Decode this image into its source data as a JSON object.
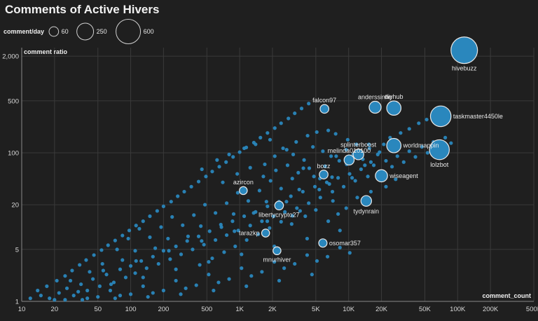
{
  "chart_data": {
    "type": "scatter",
    "title": "Comments of Active Hivers",
    "xlabel": "comment_count",
    "ylabel": "comment ratio",
    "x_scale": "log",
    "y_scale": "log",
    "xlim": [
      10,
      500000
    ],
    "ylim": [
      1,
      2600
    ],
    "x_ticks": [
      10,
      20,
      50,
      100,
      200,
      500,
      1000,
      2000,
      5000,
      10000,
      20000,
      50000,
      100000,
      200000,
      500000
    ],
    "x_tick_labels": [
      "10",
      "20",
      "50",
      "100",
      "200",
      "500",
      "1K",
      "2K",
      "5K",
      "10K",
      "20K",
      "50K",
      "100K",
      "200K",
      "500K"
    ],
    "y_ticks": [
      1,
      5,
      20,
      100,
      500,
      2000
    ],
    "y_tick_labels": [
      "1",
      "5",
      "20",
      "100",
      "500",
      "2,000"
    ],
    "grid": true,
    "size_legend": {
      "title": "comment/day",
      "entries": [
        {
          "label": "60",
          "value": 60
        },
        {
          "label": "250",
          "value": 250
        },
        {
          "label": "600",
          "value": 600
        }
      ]
    },
    "colors": {
      "point": "#2a87bd",
      "background": "#1f1f1f",
      "grid": "#3a3a3a"
    },
    "labeled_points": [
      {
        "name": "hivebuzz",
        "x": 115000,
        "y": 2400,
        "size": 640,
        "label_pos": "below"
      },
      {
        "name": "taskmaster4450le",
        "x": 70000,
        "y": 310,
        "size": 360,
        "label_pos": "right"
      },
      {
        "name": "lolzbot",
        "x": 68000,
        "y": 110,
        "size": 330,
        "label_pos": "below"
      },
      {
        "name": "worldmappin",
        "x": 26000,
        "y": 125,
        "size": 150,
        "label_pos": "right"
      },
      {
        "name": "anderssinho",
        "x": 17500,
        "y": 410,
        "size": 95,
        "label_pos": "above"
      },
      {
        "name": "diyhub",
        "x": 26000,
        "y": 400,
        "size": 150,
        "label_pos": "above"
      },
      {
        "name": "falcon97",
        "x": 6000,
        "y": 390,
        "size": 40,
        "label_pos": "above"
      },
      {
        "name": "splinterboost",
        "x": 12300,
        "y": 95,
        "size": 70,
        "label_pos": "above"
      },
      {
        "name": "melinda010100",
        "x": 10100,
        "y": 80,
        "size": 60,
        "label_pos": "above"
      },
      {
        "name": "bozz",
        "x": 5900,
        "y": 51,
        "size": 40,
        "label_pos": "above"
      },
      {
        "name": "wiseagent",
        "x": 20000,
        "y": 49,
        "size": 100,
        "label_pos": "right"
      },
      {
        "name": "azircon",
        "x": 1080,
        "y": 31,
        "size": 30,
        "label_pos": "above"
      },
      {
        "name": "tydynrain",
        "x": 14500,
        "y": 22.5,
        "size": 70,
        "label_pos": "below"
      },
      {
        "name": "libertycrypto27",
        "x": 2300,
        "y": 19.5,
        "size": 40,
        "label_pos": "below"
      },
      {
        "name": "tarazkp",
        "x": 1730,
        "y": 8.3,
        "size": 30,
        "label_pos": "left"
      },
      {
        "name": "osomar357",
        "x": 5800,
        "y": 6.1,
        "size": 35,
        "label_pos": "right"
      },
      {
        "name": "mnurhiver",
        "x": 2200,
        "y": 4.8,
        "size": 30,
        "label_pos": "below"
      }
    ],
    "cloud_points_note": "",
    "cloud_points": [
      [
        12,
        1.1
      ],
      [
        15,
        1.2
      ],
      [
        18,
        1.1
      ],
      [
        22,
        1.3
      ],
      [
        26,
        1.5
      ],
      [
        30,
        1.2
      ],
      [
        35,
        1.7
      ],
      [
        40,
        1.4
      ],
      [
        45,
        2.0
      ],
      [
        52,
        1.6
      ],
      [
        60,
        2.3
      ],
      [
        70,
        1.8
      ],
      [
        80,
        2.7
      ],
      [
        90,
        2.1
      ],
      [
        100,
        3.0
      ],
      [
        110,
        2.4
      ],
      [
        125,
        3.5
      ],
      [
        140,
        2.8
      ],
      [
        160,
        4.0
      ],
      [
        180,
        3.2
      ],
      [
        200,
        4.8
      ],
      [
        230,
        3.7
      ],
      [
        260,
        5.5
      ],
      [
        290,
        4.3
      ],
      [
        330,
        6.5
      ],
      [
        370,
        5.0
      ],
      [
        420,
        7.5
      ],
      [
        470,
        5.8
      ],
      [
        530,
        8.8
      ],
      [
        600,
        6.7
      ],
      [
        680,
        10
      ],
      [
        760,
        7.8
      ],
      [
        860,
        12
      ],
      [
        970,
        9
      ],
      [
        1100,
        14
      ],
      [
        1250,
        10.5
      ],
      [
        1400,
        16
      ],
      [
        1600,
        12
      ],
      [
        1800,
        19
      ],
      [
        2050,
        14
      ],
      [
        2300,
        22
      ],
      [
        2600,
        16
      ],
      [
        2950,
        26
      ],
      [
        3350,
        18
      ],
      [
        3800,
        30
      ],
      [
        4300,
        21
      ],
      [
        4900,
        35
      ],
      [
        5500,
        25
      ],
      [
        6300,
        40
      ],
      [
        7100,
        30
      ],
      [
        8000,
        46
      ],
      [
        9000,
        35
      ],
      [
        10200,
        52
      ],
      [
        11500,
        42
      ],
      [
        13000,
        60
      ],
      [
        15000,
        48
      ],
      [
        17000,
        68
      ],
      [
        19000,
        56
      ],
      [
        22000,
        78
      ],
      [
        25000,
        65
      ],
      [
        28000,
        90
      ],
      [
        32000,
        75
      ],
      [
        36000,
        105
      ],
      [
        41000,
        88
      ],
      [
        47000,
        120
      ],
      [
        53000,
        100
      ],
      [
        60000,
        140
      ],
      [
        68000,
        115
      ],
      [
        77000,
        160
      ],
      [
        87000,
        135
      ],
      [
        14,
        1.4
      ],
      [
        17,
        1.6
      ],
      [
        21,
        1.9
      ],
      [
        25,
        2.2
      ],
      [
        29,
        2.6
      ],
      [
        34,
        3.1
      ],
      [
        39,
        3.6
      ],
      [
        46,
        4.2
      ],
      [
        54,
        4.9
      ],
      [
        62,
        5.7
      ],
      [
        72,
        6.6
      ],
      [
        84,
        7.7
      ],
      [
        97,
        9
      ],
      [
        112,
        10.5
      ],
      [
        130,
        12
      ],
      [
        150,
        14
      ],
      [
        175,
        16.5
      ],
      [
        200,
        19
      ],
      [
        235,
        22
      ],
      [
        270,
        26
      ],
      [
        310,
        30
      ],
      [
        360,
        35
      ],
      [
        420,
        41
      ],
      [
        490,
        48
      ],
      [
        560,
        56
      ],
      [
        650,
        65
      ],
      [
        750,
        75
      ],
      [
        870,
        88
      ],
      [
        1000,
        102
      ],
      [
        1150,
        118
      ],
      [
        1350,
        137
      ],
      [
        1550,
        160
      ],
      [
        1800,
        185
      ],
      [
        2100,
        215
      ],
      [
        2400,
        250
      ],
      [
        2800,
        290
      ],
      [
        3200,
        340
      ],
      [
        3700,
        395
      ],
      [
        4300,
        460
      ],
      [
        20,
        1.05
      ],
      [
        40,
        1.1
      ],
      [
        80,
        1.2
      ],
      [
        160,
        1.3
      ],
      [
        320,
        1.5
      ],
      [
        640,
        1.8
      ],
      [
        1280,
        2.2
      ],
      [
        2560,
        2.8
      ],
      [
        5120,
        3.5
      ],
      [
        10240,
        4.5
      ],
      [
        25,
        1.05
      ],
      [
        50,
        1.15
      ],
      [
        100,
        1.25
      ],
      [
        200,
        1.4
      ],
      [
        400,
        1.65
      ],
      [
        800,
        2.0
      ],
      [
        1600,
        2.5
      ],
      [
        3200,
        3.2
      ],
      [
        6400,
        4.0
      ],
      [
        33,
        1.35
      ],
      [
        66,
        1.7
      ],
      [
        130,
        2.1
      ],
      [
        260,
        2.7
      ],
      [
        520,
        3.4
      ],
      [
        1040,
        4.3
      ],
      [
        2080,
        5.5
      ],
      [
        4160,
        7.0
      ],
      [
        8320,
        9.0
      ],
      [
        42,
        2.5
      ],
      [
        84,
        3.6
      ],
      [
        168,
        5.2
      ],
      [
        336,
        7.5
      ],
      [
        672,
        10.8
      ],
      [
        1344,
        15.5
      ],
      [
        2688,
        22
      ],
      [
        5376,
        32
      ],
      [
        10752,
        46
      ],
      [
        55,
        3.2
      ],
      [
        110,
        4.8
      ],
      [
        220,
        7.0
      ],
      [
        440,
        10.3
      ],
      [
        880,
        15
      ],
      [
        1760,
        22
      ],
      [
        3520,
        32
      ],
      [
        7040,
        47
      ],
      [
        14080,
        68
      ],
      [
        75,
        5.0
      ],
      [
        150,
        7.3
      ],
      [
        300,
        10.6
      ],
      [
        600,
        15.5
      ],
      [
        1200,
        22.5
      ],
      [
        2400,
        33
      ],
      [
        4800,
        48
      ],
      [
        9600,
        70
      ],
      [
        19200,
        102
      ],
      [
        95,
        7.0
      ],
      [
        190,
        10.0
      ],
      [
        380,
        14.5
      ],
      [
        760,
        21
      ],
      [
        1520,
        31
      ],
      [
        3040,
        45
      ],
      [
        6080,
        66
      ],
      [
        12160,
        96
      ],
      [
        24320,
        140
      ],
      [
        120,
        9.5
      ],
      [
        240,
        13.7
      ],
      [
        480,
        20
      ],
      [
        960,
        29
      ],
      [
        1920,
        42
      ],
      [
        3840,
        62
      ],
      [
        7680,
        90
      ],
      [
        15360,
        130
      ],
      [
        65,
        1.4
      ],
      [
        130,
        1.6
      ],
      [
        260,
        1.9
      ],
      [
        520,
        2.3
      ],
      [
        1040,
        2.8
      ],
      [
        2080,
        3.4
      ],
      [
        4160,
        4.2
      ],
      [
        8320,
        5.3
      ],
      [
        28,
        1.9
      ],
      [
        56,
        2.6
      ],
      [
        112,
        3.5
      ],
      [
        224,
        4.8
      ],
      [
        448,
        6.5
      ],
      [
        896,
        8.8
      ],
      [
        1792,
        12
      ],
      [
        3584,
        16.5
      ],
      [
        7168,
        22.5
      ],
      [
        36,
        1.05
      ],
      [
        72,
        1.1
      ],
      [
        144,
        1.15
      ],
      [
        288,
        1.25
      ],
      [
        576,
        1.4
      ],
      [
        1152,
        1.6
      ],
      [
        2304,
        1.9
      ],
      [
        4608,
        2.3
      ],
      [
        1700,
        70
      ],
      [
        2100,
        90
      ],
      [
        2700,
        110
      ],
      [
        3300,
        140
      ],
      [
        4200,
        170
      ],
      [
        5100,
        190
      ],
      [
        6500,
        200
      ],
      [
        7600,
        180
      ],
      [
        9800,
        150
      ],
      [
        11800,
        130
      ],
      [
        15500,
        115
      ],
      [
        21000,
        130
      ],
      [
        24000,
        160
      ],
      [
        30000,
        185
      ],
      [
        36000,
        210
      ],
      [
        44000,
        250
      ],
      [
        52000,
        280
      ],
      [
        450,
        60
      ],
      [
        620,
        80
      ],
      [
        800,
        95
      ],
      [
        1100,
        115
      ],
      [
        1400,
        130
      ],
      [
        1900,
        150
      ],
      [
        2500,
        115
      ],
      [
        3100,
        95
      ],
      [
        3900,
        80
      ],
      [
        4700,
        120
      ],
      [
        5800,
        105
      ],
      [
        6900,
        90
      ],
      [
        8200,
        78
      ],
      [
        9500,
        110
      ],
      [
        11000,
        95
      ],
      [
        13500,
        82
      ],
      [
        16000,
        75
      ],
      [
        18500,
        95
      ],
      [
        700,
        40
      ],
      [
        950,
        52
      ],
      [
        1250,
        63
      ],
      [
        1650,
        48
      ],
      [
        2150,
        58
      ],
      [
        2750,
        68
      ],
      [
        3450,
        54
      ],
      [
        4350,
        62
      ],
      [
        5450,
        45
      ],
      [
        6650,
        38
      ],
      [
        3000,
        11
      ],
      [
        4000,
        14
      ],
      [
        5000,
        17
      ],
      [
        6500,
        12
      ],
      [
        8000,
        15
      ],
      [
        9500,
        18
      ],
      [
        12000,
        25
      ],
      [
        16000,
        30
      ],
      [
        22000,
        35
      ],
      [
        27000,
        44
      ],
      [
        430,
        3.1
      ],
      [
        560,
        3.8
      ],
      [
        720,
        4.6
      ],
      [
        910,
        5.5
      ],
      [
        1160,
        6.7
      ],
      [
        1480,
        8.0
      ],
      [
        1880,
        9.7
      ],
      [
        2400,
        11.8
      ],
      [
        3050,
        14.2
      ]
    ]
  }
}
